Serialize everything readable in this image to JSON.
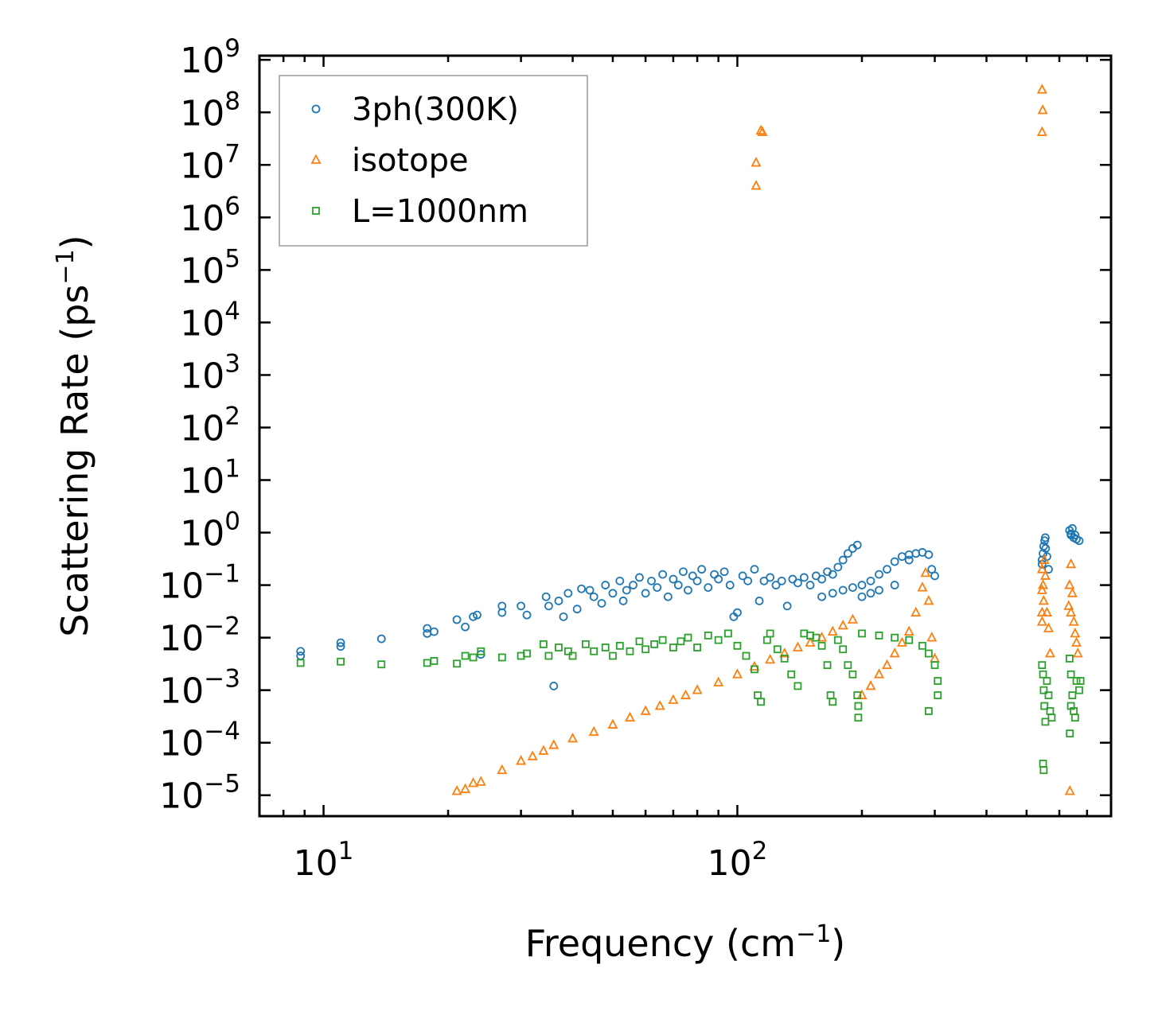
{
  "chart_data": {
    "type": "scatter",
    "title": "",
    "xlabel": "Frequency (cm",
    "xlabel_sup": "−1",
    "xlabel_end": ")",
    "ylabel": "Scattering Rate (ps",
    "ylabel_sup": "−1",
    "ylabel_end": ")",
    "xscale": "log",
    "yscale": "log",
    "xlim": [
      7,
      800
    ],
    "ylim": [
      4e-06,
      1200000000
    ],
    "x_ticks": [
      {
        "value": 10,
        "base": "10",
        "exp": "1"
      },
      {
        "value": 100,
        "base": "10",
        "exp": "2"
      }
    ],
    "y_ticks": [
      {
        "value": 1000000000.0,
        "base": "10",
        "exp": "9"
      },
      {
        "value": 100000000.0,
        "base": "10",
        "exp": "8"
      },
      {
        "value": 10000000.0,
        "base": "10",
        "exp": "7"
      },
      {
        "value": 1000000.0,
        "base": "10",
        "exp": "6"
      },
      {
        "value": 100000.0,
        "base": "10",
        "exp": "5"
      },
      {
        "value": 10000.0,
        "base": "10",
        "exp": "4"
      },
      {
        "value": 1000.0,
        "base": "10",
        "exp": "3"
      },
      {
        "value": 100.0,
        "base": "10",
        "exp": "2"
      },
      {
        "value": 10.0,
        "base": "10",
        "exp": "1"
      },
      {
        "value": 1.0,
        "base": "10",
        "exp": "0"
      },
      {
        "value": 0.1,
        "base": "10",
        "exp": "−1"
      },
      {
        "value": 0.01,
        "base": "10",
        "exp": "−2"
      },
      {
        "value": 0.001,
        "base": "10",
        "exp": "−3"
      },
      {
        "value": 0.0001,
        "base": "10",
        "exp": "−4"
      },
      {
        "value": 1e-05,
        "base": "10",
        "exp": "−5"
      }
    ],
    "legend_position": "top-left",
    "series": [
      {
        "name": "3ph(300K)",
        "marker": "circle",
        "color": "#1f77b4",
        "points": [
          [
            8.8,
            0.0055
          ],
          [
            8.8,
            0.0045
          ],
          [
            11,
            0.008
          ],
          [
            11,
            0.0068
          ],
          [
            13.8,
            0.0095
          ],
          [
            17.8,
            0.015
          ],
          [
            17.8,
            0.012
          ],
          [
            18.5,
            0.013
          ],
          [
            21,
            0.022
          ],
          [
            22,
            0.016
          ],
          [
            23,
            0.025
          ],
          [
            23.5,
            0.027
          ],
          [
            24,
            0.0048
          ],
          [
            27,
            0.04
          ],
          [
            27,
            0.03
          ],
          [
            30,
            0.04
          ],
          [
            31,
            0.027
          ],
          [
            34.5,
            0.06
          ],
          [
            35,
            0.04
          ],
          [
            36,
            0.0012
          ],
          [
            37,
            0.05
          ],
          [
            38,
            0.025
          ],
          [
            39,
            0.07
          ],
          [
            41,
            0.035
          ],
          [
            42,
            0.085
          ],
          [
            44,
            0.08
          ],
          [
            45,
            0.06
          ],
          [
            47,
            0.045
          ],
          [
            48,
            0.1
          ],
          [
            50,
            0.07
          ],
          [
            52,
            0.12
          ],
          [
            53,
            0.05
          ],
          [
            54,
            0.08
          ],
          [
            56,
            0.1
          ],
          [
            58,
            0.14
          ],
          [
            60,
            0.07
          ],
          [
            62,
            0.12
          ],
          [
            64,
            0.09
          ],
          [
            66,
            0.16
          ],
          [
            68,
            0.06
          ],
          [
            70,
            0.13
          ],
          [
            72,
            0.1
          ],
          [
            74,
            0.18
          ],
          [
            76,
            0.08
          ],
          [
            78,
            0.15
          ],
          [
            80,
            0.12
          ],
          [
            82,
            0.2
          ],
          [
            85,
            0.09
          ],
          [
            88,
            0.16
          ],
          [
            90,
            0.13
          ],
          [
            93,
            0.18
          ],
          [
            96,
            0.1
          ],
          [
            98,
            0.025
          ],
          [
            100,
            0.03
          ],
          [
            103,
            0.15
          ],
          [
            106,
            0.12
          ],
          [
            110,
            0.2
          ],
          [
            113,
            0.05
          ],
          [
            116,
            0.12
          ],
          [
            120,
            0.14
          ],
          [
            124,
            0.1
          ],
          [
            128,
            0.12
          ],
          [
            132,
            0.04
          ],
          [
            136,
            0.13
          ],
          [
            140,
            0.11
          ],
          [
            145,
            0.14
          ],
          [
            150,
            0.1
          ],
          [
            155,
            0.15
          ],
          [
            160,
            0.13
          ],
          [
            165,
            0.18
          ],
          [
            170,
            0.16
          ],
          [
            175,
            0.22
          ],
          [
            180,
            0.3
          ],
          [
            185,
            0.4
          ],
          [
            190,
            0.5
          ],
          [
            195,
            0.58
          ],
          [
            160,
            0.06
          ],
          [
            170,
            0.07
          ],
          [
            180,
            0.08
          ],
          [
            190,
            0.09
          ],
          [
            200,
            0.1
          ],
          [
            210,
            0.12
          ],
          [
            220,
            0.16
          ],
          [
            230,
            0.2
          ],
          [
            240,
            0.28
          ],
          [
            250,
            0.35
          ],
          [
            260,
            0.38
          ],
          [
            270,
            0.4
          ],
          [
            280,
            0.42
          ],
          [
            290,
            0.38
          ],
          [
            295,
            0.2
          ],
          [
            300,
            0.15
          ],
          [
            200,
            0.06
          ],
          [
            210,
            0.07
          ],
          [
            220,
            0.08
          ],
          [
            240,
            0.1
          ],
          [
            260,
            0.3
          ],
          [
            545,
            0.3
          ],
          [
            548,
            0.4
          ],
          [
            550,
            0.55
          ],
          [
            553,
            0.7
          ],
          [
            556,
            0.5
          ],
          [
            560,
            0.35
          ],
          [
            565,
            0.2
          ],
          [
            545,
            0.25
          ],
          [
            555,
            0.8
          ],
          [
            635,
            1.1
          ],
          [
            640,
            0.9
          ],
          [
            645,
            1.2
          ],
          [
            650,
            0.8
          ],
          [
            655,
            0.9
          ],
          [
            660,
            0.75
          ],
          [
            670,
            0.7
          ],
          [
            640,
            0.95
          ]
        ]
      },
      {
        "name": "isotope",
        "marker": "triangle",
        "color": "#ff7f0e",
        "points": [
          [
            21,
            1.2e-05
          ],
          [
            22,
            1.3e-05
          ],
          [
            23,
            1.7e-05
          ],
          [
            24,
            1.8e-05
          ],
          [
            27,
            3e-05
          ],
          [
            30,
            4.5e-05
          ],
          [
            32,
            5.5e-05
          ],
          [
            34,
            7e-05
          ],
          [
            36,
            9e-05
          ],
          [
            40,
            0.00012
          ],
          [
            45,
            0.00016
          ],
          [
            50,
            0.00022
          ],
          [
            55,
            0.0003
          ],
          [
            60,
            0.0004
          ],
          [
            65,
            0.0005
          ],
          [
            70,
            0.00065
          ],
          [
            75,
            0.0008
          ],
          [
            80,
            0.001
          ],
          [
            90,
            0.0014
          ],
          [
            100,
            0.002
          ],
          [
            110,
            0.0028
          ],
          [
            120,
            0.0038
          ],
          [
            130,
            0.005
          ],
          [
            140,
            0.0065
          ],
          [
            150,
            0.008
          ],
          [
            160,
            0.01
          ],
          [
            170,
            0.013
          ],
          [
            180,
            0.017
          ],
          [
            190,
            0.022
          ],
          [
            200,
            0.0008
          ],
          [
            210,
            0.0012
          ],
          [
            220,
            0.002
          ],
          [
            230,
            0.003
          ],
          [
            240,
            0.005
          ],
          [
            250,
            0.008
          ],
          [
            260,
            0.013
          ],
          [
            270,
            0.03
          ],
          [
            280,
            0.09
          ],
          [
            285,
            0.17
          ],
          [
            290,
            0.05
          ],
          [
            295,
            0.01
          ],
          [
            300,
            0.004
          ],
          [
            111,
            4000000
          ],
          [
            111,
            11000000
          ],
          [
            114,
            45000000
          ],
          [
            115,
            42000000
          ],
          [
            545,
            270000000
          ],
          [
            547,
            110000000
          ],
          [
            545,
            42000000
          ],
          [
            545,
            0.2
          ],
          [
            545,
            0.08
          ],
          [
            545,
            0.03
          ],
          [
            545,
            0.02
          ],
          [
            548,
            0.1
          ],
          [
            550,
            0.05
          ],
          [
            552,
            0.3
          ],
          [
            555,
            0.15
          ],
          [
            560,
            0.03
          ],
          [
            565,
            0.015
          ],
          [
            570,
            0.005
          ],
          [
            640,
            0.25
          ],
          [
            635,
            0.1
          ],
          [
            632,
            0.04
          ],
          [
            640,
            0.03
          ],
          [
            645,
            0.07
          ],
          [
            650,
            0.02
          ],
          [
            655,
            0.012
          ],
          [
            660,
            0.008
          ],
          [
            665,
            0.005
          ],
          [
            636,
            1.2e-05
          ]
        ]
      },
      {
        "name": "L=1000nm",
        "marker": "square",
        "color": "#2ca02c",
        "points": [
          [
            8.8,
            0.0033
          ],
          [
            11,
            0.0035
          ],
          [
            13.8,
            0.0031
          ],
          [
            17.8,
            0.0033
          ],
          [
            18.5,
            0.0036
          ],
          [
            21,
            0.0032
          ],
          [
            22,
            0.0045
          ],
          [
            23,
            0.0042
          ],
          [
            24,
            0.0055
          ],
          [
            27,
            0.0042
          ],
          [
            30,
            0.0045
          ],
          [
            31,
            0.005
          ],
          [
            34,
            0.0075
          ],
          [
            35,
            0.0045
          ],
          [
            37,
            0.0065
          ],
          [
            39,
            0.0055
          ],
          [
            40,
            0.0045
          ],
          [
            43,
            0.0075
          ],
          [
            45,
            0.0055
          ],
          [
            48,
            0.0065
          ],
          [
            50,
            0.0045
          ],
          [
            52,
            0.007
          ],
          [
            55,
            0.0055
          ],
          [
            58,
            0.0085
          ],
          [
            60,
            0.006
          ],
          [
            63,
            0.0075
          ],
          [
            66,
            0.009
          ],
          [
            70,
            0.0065
          ],
          [
            73,
            0.0085
          ],
          [
            76,
            0.01
          ],
          [
            80,
            0.0065
          ],
          [
            85,
            0.011
          ],
          [
            90,
            0.009
          ],
          [
            95,
            0.012
          ],
          [
            100,
            0.007
          ],
          [
            105,
            0.0045
          ],
          [
            110,
            0.0025
          ],
          [
            112,
            0.0008
          ],
          [
            114,
            0.0006
          ],
          [
            118,
            0.009
          ],
          [
            120,
            0.012
          ],
          [
            125,
            0.006
          ],
          [
            130,
            0.004
          ],
          [
            135,
            0.002
          ],
          [
            140,
            0.0012
          ],
          [
            145,
            0.012
          ],
          [
            150,
            0.011
          ],
          [
            155,
            0.01
          ],
          [
            160,
            0.007
          ],
          [
            165,
            0.003
          ],
          [
            168,
            0.0008
          ],
          [
            170,
            0.0006
          ],
          [
            175,
            0.009
          ],
          [
            180,
            0.006
          ],
          [
            185,
            0.003
          ],
          [
            190,
            0.002
          ],
          [
            195,
            0.0008
          ],
          [
            196,
            0.0005
          ],
          [
            196,
            0.0003
          ],
          [
            200,
            0.012
          ],
          [
            220,
            0.011
          ],
          [
            240,
            0.01
          ],
          [
            260,
            0.009
          ],
          [
            280,
            0.007
          ],
          [
            290,
            0.005
          ],
          [
            300,
            0.003
          ],
          [
            305,
            0.0015
          ],
          [
            290,
            0.0004
          ],
          [
            305,
            0.0008
          ],
          [
            545,
            0.003
          ],
          [
            548,
            0.002
          ],
          [
            550,
            0.001
          ],
          [
            552,
            0.0005
          ],
          [
            555,
            0.00025
          ],
          [
            548,
            4e-05
          ],
          [
            550,
            3e-05
          ],
          [
            560,
            0.0015
          ],
          [
            565,
            0.0008
          ],
          [
            570,
            0.0004
          ],
          [
            575,
            0.0003
          ],
          [
            635,
            0.004
          ],
          [
            640,
            0.002
          ],
          [
            645,
            0.0008
          ],
          [
            650,
            0.0004
          ],
          [
            655,
            0.0003
          ],
          [
            660,
            0.0015
          ],
          [
            670,
            0.001
          ],
          [
            675,
            0.0015
          ],
          [
            636,
            0.00015
          ],
          [
            640,
            0.0005
          ]
        ]
      }
    ]
  }
}
